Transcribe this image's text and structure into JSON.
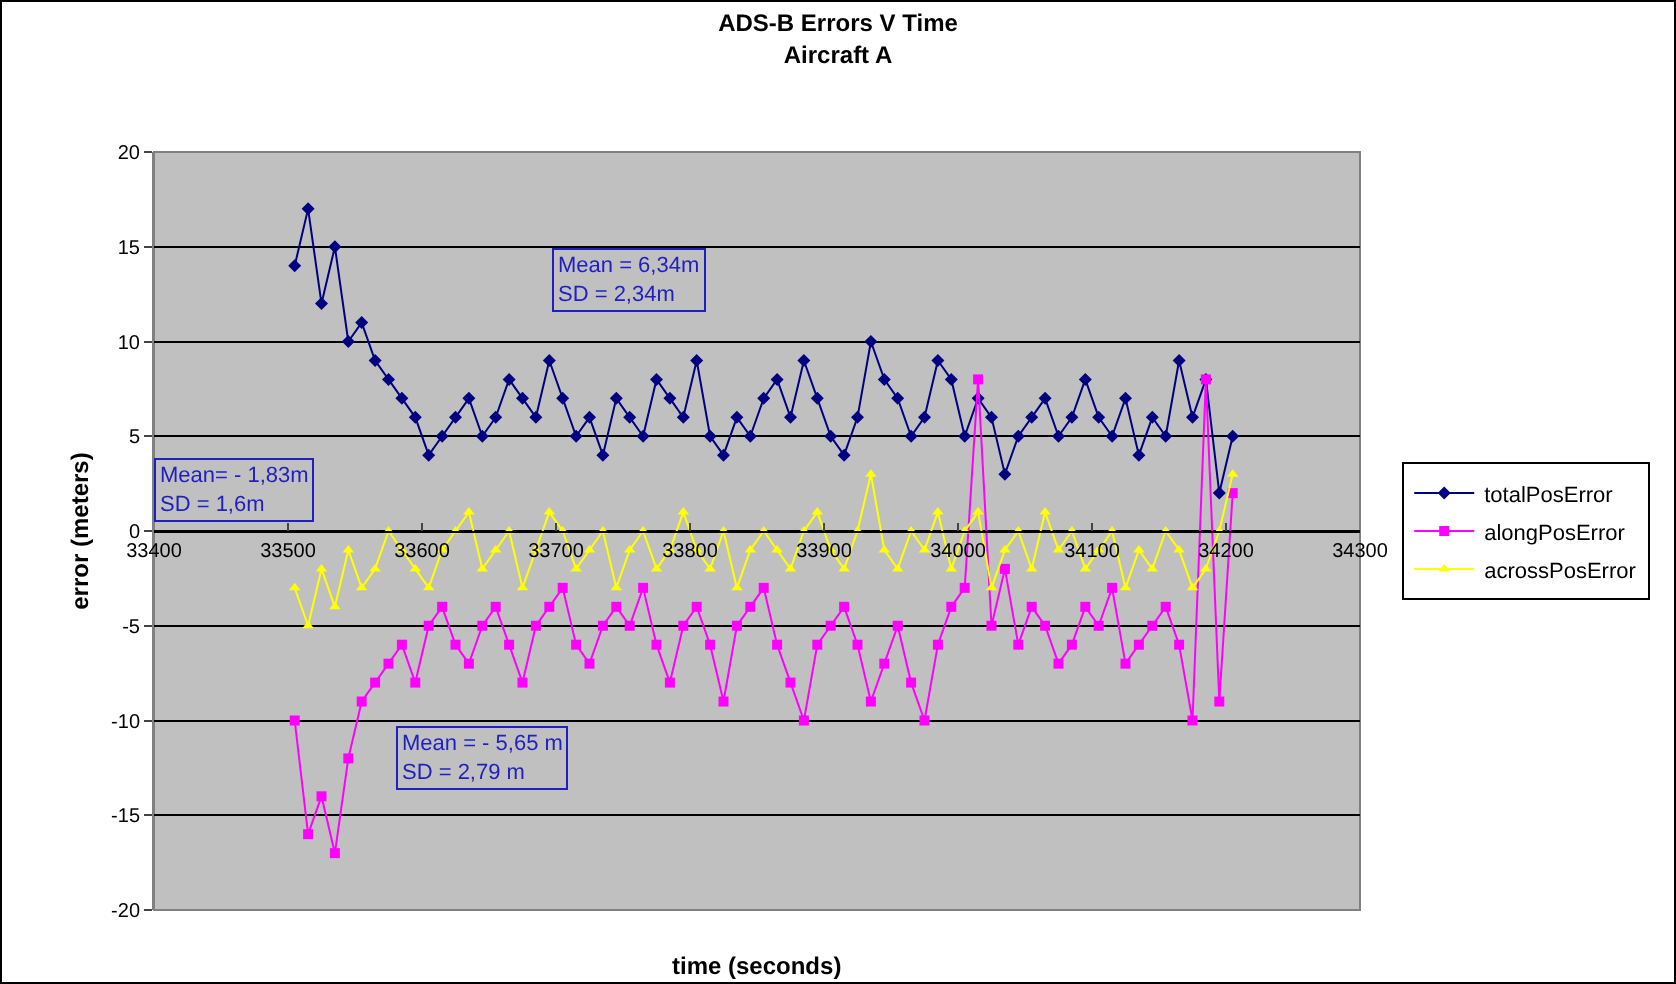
{
  "chart_data": {
    "type": "line",
    "title": "ADS-B Errors V Time",
    "subtitle": "Aircraft A",
    "xlabel": "time (seconds)",
    "ylabel": "error (meters)",
    "x": [
      33505,
      33515,
      33525,
      33535,
      33545,
      33555,
      33565,
      33575,
      33585,
      33595,
      33605,
      33615,
      33625,
      33635,
      33645,
      33655,
      33665,
      33675,
      33685,
      33695,
      33705,
      33715,
      33725,
      33735,
      33745,
      33755,
      33765,
      33775,
      33785,
      33795,
      33805,
      33815,
      33825,
      33835,
      33845,
      33855,
      33865,
      33875,
      33885,
      33895,
      33905,
      33915,
      33925,
      33935,
      33945,
      33955,
      33965,
      33975,
      33985,
      33995,
      34005,
      34015,
      34025,
      34035,
      34045,
      34055,
      34065,
      34075,
      34085,
      34095,
      34105,
      34115,
      34125,
      34135,
      34145,
      34155,
      34165,
      34175,
      34185,
      34195,
      34205
    ],
    "series": [
      {
        "name": "totalPosError",
        "color": "#000080",
        "marker": "diamond",
        "values": [
          14,
          17,
          12,
          15,
          10,
          11,
          9,
          8,
          7,
          6,
          4,
          5,
          6,
          7,
          5,
          6,
          8,
          7,
          6,
          9,
          7,
          5,
          6,
          4,
          7,
          6,
          5,
          8,
          7,
          6,
          9,
          5,
          4,
          6,
          5,
          7,
          8,
          6,
          9,
          7,
          5,
          4,
          6,
          10,
          8,
          7,
          5,
          6,
          9,
          8,
          5,
          7,
          6,
          3,
          5,
          6,
          7,
          5,
          6,
          8,
          6,
          5,
          7,
          4,
          6,
          5,
          9,
          6,
          8,
          2,
          5
        ]
      },
      {
        "name": "alongPosError",
        "color": "#ff00ff",
        "marker": "square",
        "values": [
          -10,
          -16,
          -14,
          -17,
          -12,
          -9,
          -8,
          -7,
          -6,
          -8,
          -5,
          -4,
          -6,
          -7,
          -5,
          -4,
          -6,
          -8,
          -5,
          -4,
          -3,
          -6,
          -7,
          -5,
          -4,
          -5,
          -3,
          -6,
          -8,
          -5,
          -4,
          -6,
          -9,
          -5,
          -4,
          -3,
          -6,
          -8,
          -10,
          -6,
          -5,
          -4,
          -6,
          -9,
          -7,
          -5,
          -8,
          -10,
          -6,
          -4,
          -3,
          8,
          -5,
          -2,
          -6,
          -4,
          -5,
          -7,
          -6,
          -4,
          -5,
          -3,
          -7,
          -6,
          -5,
          -4,
          -6,
          -10,
          8,
          -9,
          2
        ]
      },
      {
        "name": "acrossPosError",
        "color": "#ffff00",
        "marker": "triangle",
        "values": [
          -3,
          -5,
          -2,
          -4,
          -1,
          -3,
          -2,
          0,
          -1,
          -2,
          -3,
          -1,
          0,
          1,
          -2,
          -1,
          0,
          -3,
          -1,
          1,
          0,
          -2,
          -1,
          0,
          -3,
          -1,
          0,
          -2,
          -1,
          1,
          -1,
          -2,
          0,
          -3,
          -1,
          0,
          -1,
          -2,
          0,
          1,
          -1,
          -2,
          0,
          3,
          -1,
          -2,
          0,
          -1,
          1,
          -2,
          0,
          1,
          -3,
          -1,
          0,
          -2,
          1,
          -1,
          0,
          -2,
          -1,
          0,
          -3,
          -1,
          -2,
          0,
          -1,
          -3,
          -2,
          0,
          3
        ]
      }
    ],
    "xlim": [
      33400,
      34300
    ],
    "xticks": [
      33400,
      33500,
      33600,
      33700,
      33800,
      33900,
      34000,
      34100,
      34200,
      34300
    ],
    "ylim": [
      -20,
      20
    ],
    "yticks": [
      -20,
      -15,
      -10,
      -5,
      0,
      5,
      10,
      15,
      20
    ],
    "grid": "y",
    "legend": "right",
    "line_style": "solid",
    "annotations": [
      "Mean = 6,34m\nSD = 2,34m",
      "Mean= - 1,83m\nSD = 1,6m",
      "Mean = - 5,65 m\nSD = 2,79 m"
    ]
  }
}
